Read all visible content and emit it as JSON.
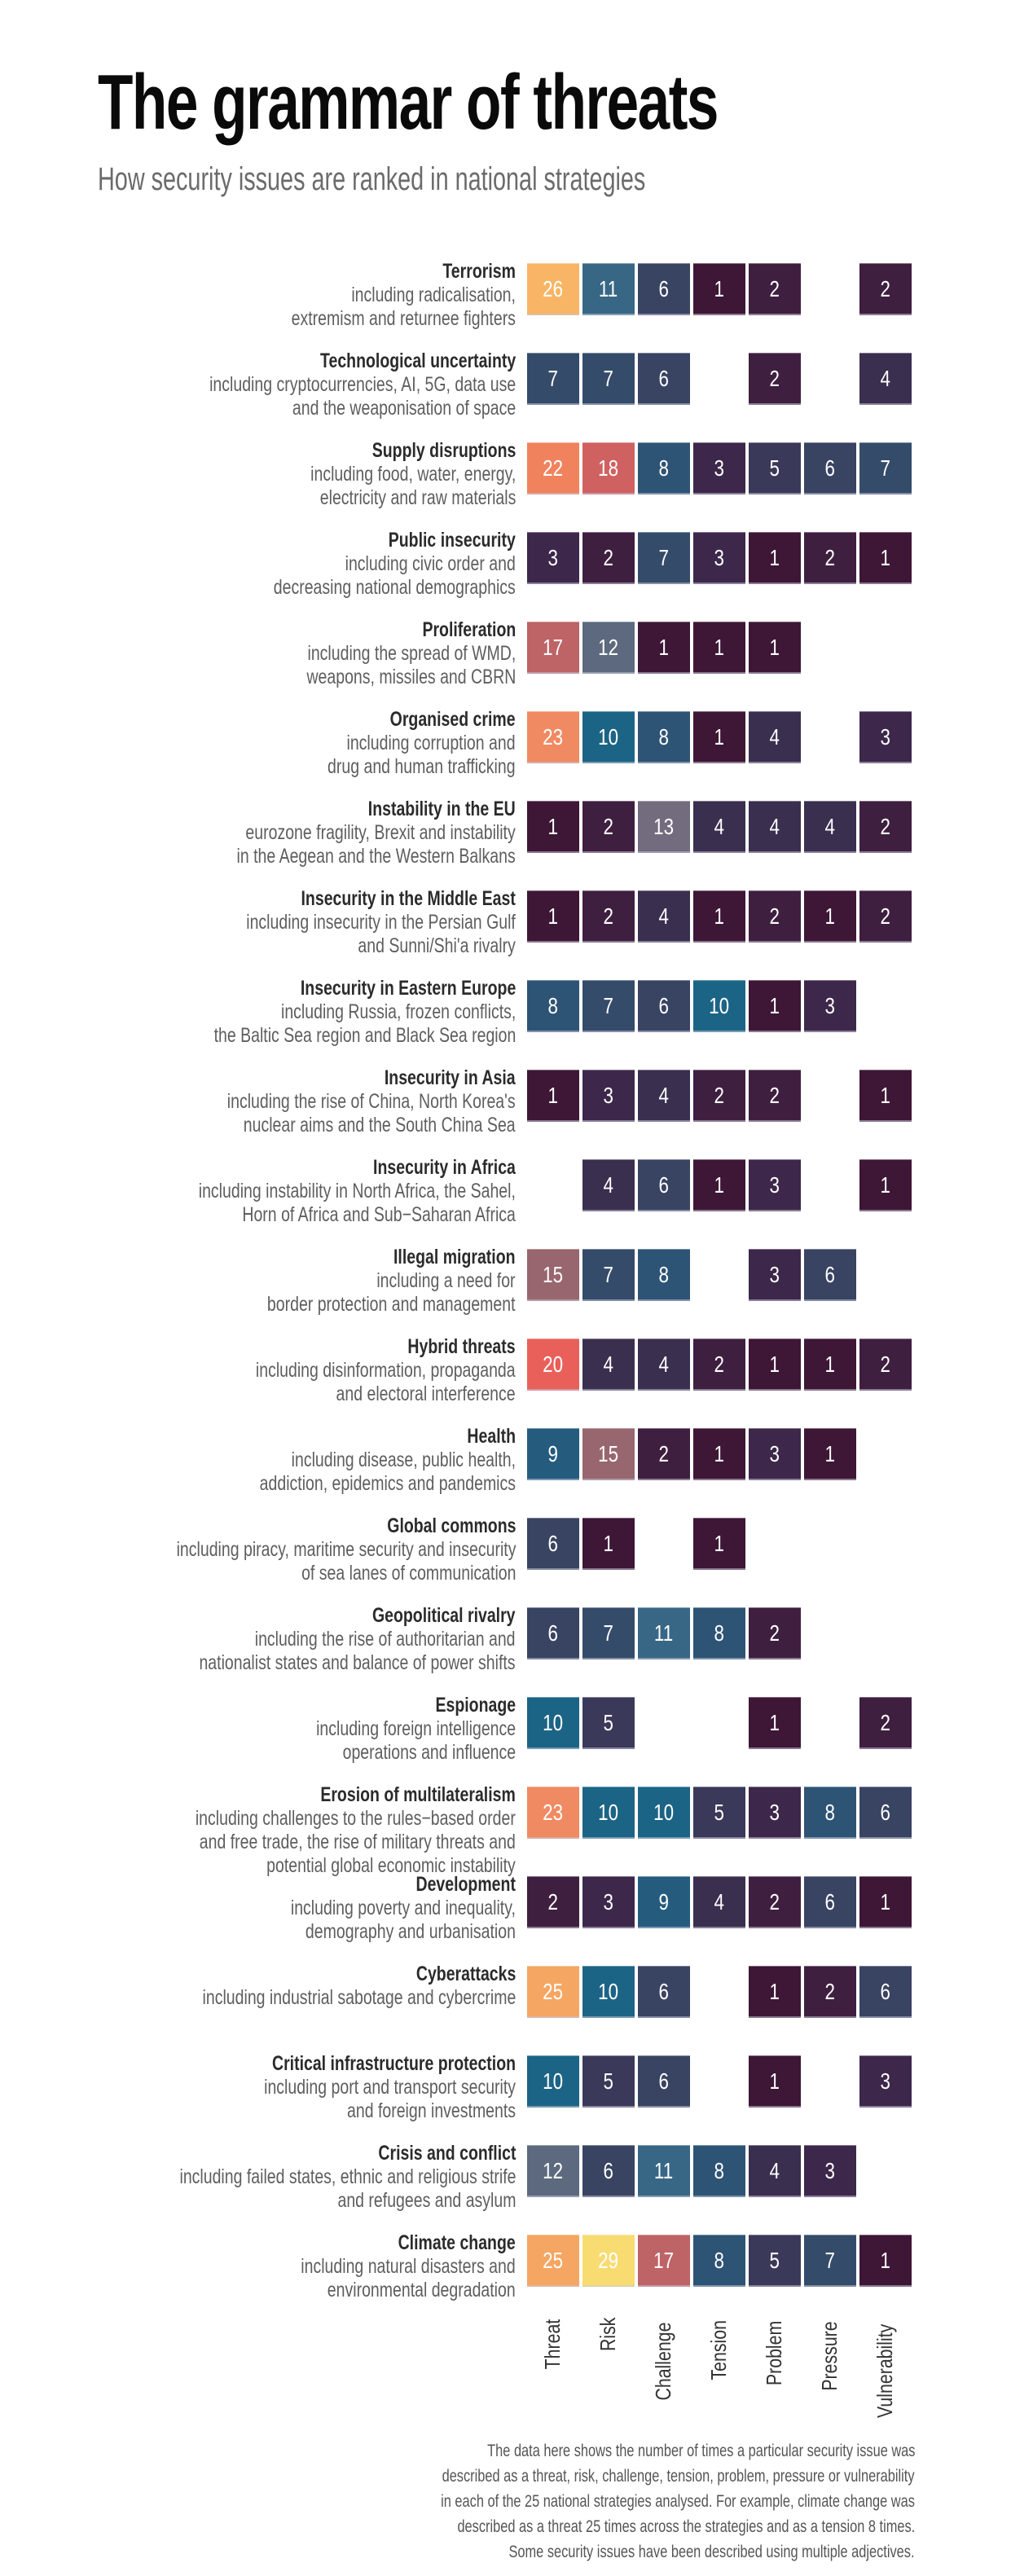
{
  "header": {
    "title": "The grammar of threats",
    "subtitle": "How security issues are ranked in national strategies"
  },
  "footnote": [
    "The data here shows the number of times a particular security issue was",
    "described as a threat, risk, challenge, tension, problem, pressure or vulnerability",
    "in each of the 25 national strategies analysed. For example, climate change was",
    "described as a threat 25 times across the strategies and as a tension 8 times.",
    "Some security issues have been described using multiple adjectives."
  ],
  "chart_data": {
    "type": "heatmap",
    "title": "The grammar of threats",
    "subtitle": "How security issues are ranked in national strategies",
    "xlabel": "",
    "ylabel": "",
    "columns": [
      "Threat",
      "Risk",
      "Challenge",
      "Tension",
      "Problem",
      "Pressure",
      "Vulnerability"
    ],
    "rows": [
      {
        "name": "Terrorism",
        "desc": [
          "including radicalisation,",
          "extremism and returnee fighters"
        ],
        "values": [
          26,
          11,
          6,
          1,
          2,
          null,
          2
        ]
      },
      {
        "name": "Technological uncertainty",
        "desc": [
          "including cryptocurrencies, AI, 5G, data use",
          "and the weaponisation of space"
        ],
        "values": [
          7,
          7,
          6,
          null,
          2,
          null,
          4
        ]
      },
      {
        "name": "Supply disruptions",
        "desc": [
          "including food, water, energy,",
          "electricity and raw materials"
        ],
        "values": [
          22,
          18,
          8,
          3,
          5,
          6,
          7
        ]
      },
      {
        "name": "Public insecurity",
        "desc": [
          "including civic order and",
          "decreasing national demographics"
        ],
        "values": [
          3,
          2,
          7,
          3,
          1,
          2,
          1
        ]
      },
      {
        "name": "Proliferation",
        "desc": [
          "including the spread of WMD,",
          "weapons, missiles and CBRN"
        ],
        "values": [
          17,
          12,
          1,
          1,
          1,
          null,
          null
        ]
      },
      {
        "name": "Organised crime",
        "desc": [
          "including corruption and",
          "drug and human trafficking"
        ],
        "values": [
          23,
          10,
          8,
          1,
          4,
          null,
          3
        ]
      },
      {
        "name": "Instability in the EU",
        "desc": [
          "eurozone fragility, Brexit and instability",
          "in the Aegean and the Western Balkans"
        ],
        "values": [
          1,
          2,
          13,
          4,
          4,
          4,
          2
        ]
      },
      {
        "name": "Insecurity in the Middle East",
        "desc": [
          "including insecurity in the Persian Gulf",
          "and Sunni/Shi'a rivalry"
        ],
        "values": [
          1,
          2,
          4,
          1,
          2,
          1,
          2
        ]
      },
      {
        "name": "Insecurity in Eastern Europe",
        "desc": [
          "including Russia, frozen conflicts,",
          "the Baltic Sea region and Black Sea region"
        ],
        "values": [
          8,
          7,
          6,
          10,
          1,
          3,
          null
        ]
      },
      {
        "name": "Insecurity in Asia",
        "desc": [
          "including the rise of China, North Korea's",
          "nuclear aims and the South China Sea"
        ],
        "values": [
          1,
          3,
          4,
          2,
          2,
          null,
          1
        ]
      },
      {
        "name": "Insecurity in Africa",
        "desc": [
          "including instability in North Africa, the Sahel,",
          "Horn of Africa and Sub−Saharan Africa"
        ],
        "values": [
          null,
          4,
          6,
          1,
          3,
          null,
          1
        ]
      },
      {
        "name": "Illegal migration",
        "desc": [
          "including a need for",
          "border protection and management"
        ],
        "values": [
          15,
          7,
          8,
          null,
          3,
          6,
          null
        ]
      },
      {
        "name": "Hybrid threats",
        "desc": [
          "including disinformation, propaganda",
          "and electoral interference"
        ],
        "values": [
          20,
          4,
          4,
          2,
          1,
          1,
          2
        ]
      },
      {
        "name": "Health",
        "desc": [
          "including disease, public health,",
          "addiction, epidemics and pandemics"
        ],
        "values": [
          9,
          15,
          2,
          1,
          3,
          1,
          null
        ]
      },
      {
        "name": "Global commons",
        "desc": [
          "including piracy, maritime security and insecurity",
          "of sea lanes of communication"
        ],
        "values": [
          6,
          1,
          null,
          1,
          null,
          null,
          null
        ]
      },
      {
        "name": "Geopolitical rivalry",
        "desc": [
          "including the rise of authoritarian and",
          "nationalist states and balance of power shifts"
        ],
        "values": [
          6,
          7,
          11,
          8,
          2,
          null,
          null
        ]
      },
      {
        "name": "Espionage",
        "desc": [
          "including foreign intelligence",
          "operations and influence"
        ],
        "values": [
          10,
          5,
          null,
          null,
          1,
          null,
          2
        ]
      },
      {
        "name": "Erosion of multilateralism",
        "desc": [
          "including challenges to the rules−based order",
          "and free trade, the rise of military threats and",
          "potential global economic instability"
        ],
        "values": [
          23,
          10,
          10,
          5,
          3,
          8,
          6
        ]
      },
      {
        "name": "Development",
        "desc": [
          "including poverty and inequality,",
          "demography and urbanisation"
        ],
        "values": [
          2,
          3,
          9,
          4,
          2,
          6,
          1
        ]
      },
      {
        "name": "Cyberattacks",
        "desc": [
          "including industrial sabotage and cybercrime"
        ],
        "values": [
          25,
          10,
          6,
          null,
          1,
          2,
          6
        ]
      },
      {
        "name": "Critical infrastructure protection",
        "desc": [
          "including port and transport security",
          "and foreign investments"
        ],
        "values": [
          10,
          5,
          6,
          null,
          1,
          null,
          3
        ]
      },
      {
        "name": "Crisis and conflict",
        "desc": [
          "including failed states, ethnic and religious strife",
          "and refugees and asylum"
        ],
        "values": [
          12,
          6,
          11,
          8,
          4,
          3,
          null
        ]
      },
      {
        "name": "Climate change",
        "desc": [
          "including natural disasters and",
          "environmental degradation"
        ],
        "values": [
          25,
          29,
          17,
          8,
          5,
          7,
          1
        ]
      }
    ],
    "value_range": [
      1,
      29
    ],
    "color_scale": {
      "1": "#3e1636",
      "2": "#3f1f40",
      "3": "#3d274a",
      "4": "#3a2f4f",
      "5": "#3b3959",
      "6": "#394362",
      "7": "#354b6a",
      "8": "#2e5475",
      "9": "#255c7e",
      "10": "#1c6485",
      "11": "#386786",
      "12": "#5c697e",
      "13": "#736b7e",
      "14": "#866a76",
      "15": "#98666e",
      "16": "#ab646a",
      "17": "#be6366",
      "18": "#d06161",
      "19": "#dd605e",
      "20": "#e9605a",
      "21": "#ed725c",
      "22": "#f0835e",
      "23": "#f08a62",
      "24": "#f39862",
      "25": "#f5a662",
      "26": "#f8b565",
      "27": "#f8c36a",
      "28": "#f8d06e",
      "29": "#f8dc72"
    },
    "grid": false,
    "legend": "none"
  }
}
